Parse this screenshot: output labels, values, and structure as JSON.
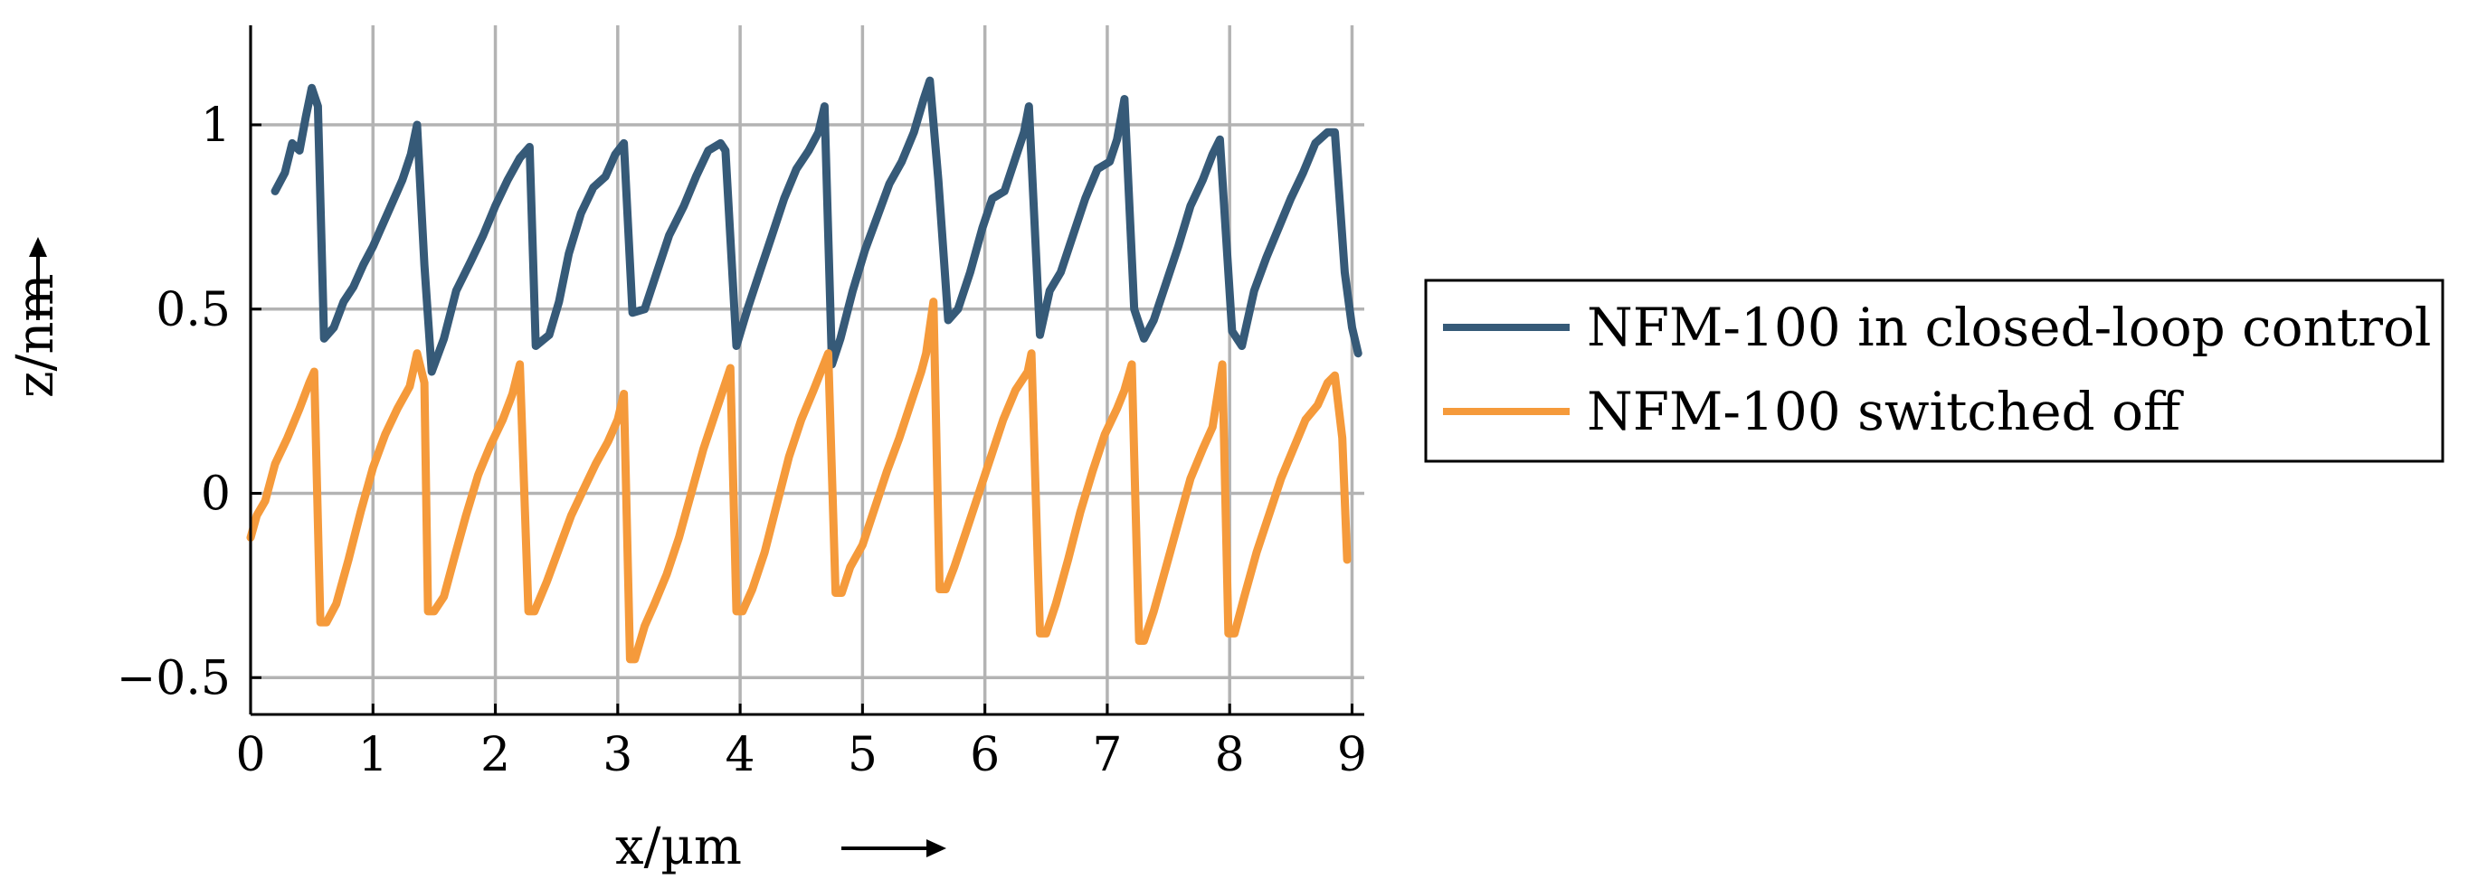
{
  "chart_data": {
    "type": "line",
    "xlabel": "x/µm",
    "ylabel": "z/nm",
    "xlim": [
      0,
      9.1
    ],
    "ylim": [
      -0.6,
      1.27
    ],
    "grid": true,
    "legend_position": "right, outside the plot",
    "xticks": [
      0,
      1,
      2,
      3,
      4,
      5,
      6,
      7,
      8,
      9
    ],
    "yticks": [
      -0.5,
      0,
      0.5,
      1
    ],
    "xtick_labels": [
      "0",
      "1",
      "2",
      "3",
      "4",
      "5",
      "6",
      "7",
      "8",
      "9"
    ],
    "ytick_labels": [
      "−0.5",
      "0",
      "0.5",
      "1"
    ],
    "series": [
      {
        "name": "NFM-100 in closed-loop control",
        "color": "#365a78",
        "points": [
          [
            0.2,
            0.82
          ],
          [
            0.28,
            0.87
          ],
          [
            0.34,
            0.95
          ],
          [
            0.4,
            0.93
          ],
          [
            0.45,
            1.02
          ],
          [
            0.5,
            1.1
          ],
          [
            0.55,
            1.05
          ],
          [
            0.6,
            0.42
          ],
          [
            0.68,
            0.45
          ],
          [
            0.76,
            0.52
          ],
          [
            0.84,
            0.56
          ],
          [
            0.92,
            0.62
          ],
          [
            1.0,
            0.67
          ],
          [
            1.08,
            0.73
          ],
          [
            1.16,
            0.79
          ],
          [
            1.24,
            0.85
          ],
          [
            1.31,
            0.92
          ],
          [
            1.36,
            1.0
          ],
          [
            1.42,
            0.62
          ],
          [
            1.48,
            0.33
          ],
          [
            1.58,
            0.42
          ],
          [
            1.68,
            0.55
          ],
          [
            1.8,
            0.63
          ],
          [
            1.9,
            0.7
          ],
          [
            2.0,
            0.78
          ],
          [
            2.1,
            0.85
          ],
          [
            2.2,
            0.91
          ],
          [
            2.28,
            0.94
          ],
          [
            2.33,
            0.4
          ],
          [
            2.44,
            0.43
          ],
          [
            2.52,
            0.52
          ],
          [
            2.6,
            0.65
          ],
          [
            2.7,
            0.76
          ],
          [
            2.8,
            0.83
          ],
          [
            2.9,
            0.86
          ],
          [
            2.98,
            0.92
          ],
          [
            3.05,
            0.95
          ],
          [
            3.12,
            0.49
          ],
          [
            3.22,
            0.5
          ],
          [
            3.32,
            0.6
          ],
          [
            3.42,
            0.7
          ],
          [
            3.54,
            0.78
          ],
          [
            3.64,
            0.86
          ],
          [
            3.74,
            0.93
          ],
          [
            3.84,
            0.95
          ],
          [
            3.88,
            0.93
          ],
          [
            3.97,
            0.4
          ],
          [
            4.06,
            0.5
          ],
          [
            4.16,
            0.6
          ],
          [
            4.26,
            0.7
          ],
          [
            4.36,
            0.8
          ],
          [
            4.46,
            0.88
          ],
          [
            4.56,
            0.93
          ],
          [
            4.64,
            0.98
          ],
          [
            4.69,
            1.05
          ],
          [
            4.75,
            0.35
          ],
          [
            4.82,
            0.42
          ],
          [
            4.92,
            0.55
          ],
          [
            5.02,
            0.66
          ],
          [
            5.12,
            0.75
          ],
          [
            5.22,
            0.84
          ],
          [
            5.32,
            0.9
          ],
          [
            5.42,
            0.98
          ],
          [
            5.5,
            1.07
          ],
          [
            5.55,
            1.12
          ],
          [
            5.62,
            0.85
          ],
          [
            5.7,
            0.47
          ],
          [
            5.78,
            0.5
          ],
          [
            5.88,
            0.6
          ],
          [
            5.98,
            0.72
          ],
          [
            6.06,
            0.8
          ],
          [
            6.16,
            0.82
          ],
          [
            6.24,
            0.9
          ],
          [
            6.32,
            0.98
          ],
          [
            6.36,
            1.05
          ],
          [
            6.45,
            0.43
          ],
          [
            6.53,
            0.55
          ],
          [
            6.62,
            0.6
          ],
          [
            6.72,
            0.7
          ],
          [
            6.82,
            0.8
          ],
          [
            6.92,
            0.88
          ],
          [
            7.02,
            0.9
          ],
          [
            7.08,
            0.96
          ],
          [
            7.14,
            1.07
          ],
          [
            7.22,
            0.5
          ],
          [
            7.3,
            0.42
          ],
          [
            7.38,
            0.47
          ],
          [
            7.48,
            0.57
          ],
          [
            7.58,
            0.67
          ],
          [
            7.68,
            0.78
          ],
          [
            7.78,
            0.85
          ],
          [
            7.86,
            0.92
          ],
          [
            7.92,
            0.96
          ],
          [
            8.02,
            0.44
          ],
          [
            8.1,
            0.4
          ],
          [
            8.2,
            0.55
          ],
          [
            8.3,
            0.64
          ],
          [
            8.4,
            0.72
          ],
          [
            8.5,
            0.8
          ],
          [
            8.6,
            0.87
          ],
          [
            8.7,
            0.95
          ],
          [
            8.8,
            0.98
          ],
          [
            8.86,
            0.98
          ],
          [
            8.94,
            0.6
          ],
          [
            9.0,
            0.45
          ],
          [
            9.05,
            0.38
          ]
        ]
      },
      {
        "name": "NFM-100 switched off",
        "color": "#f59a3b",
        "points": [
          [
            0.0,
            -0.12
          ],
          [
            0.05,
            -0.06
          ],
          [
            0.12,
            -0.02
          ],
          [
            0.2,
            0.08
          ],
          [
            0.3,
            0.15
          ],
          [
            0.4,
            0.23
          ],
          [
            0.48,
            0.3
          ],
          [
            0.52,
            0.33
          ],
          [
            0.57,
            -0.35
          ],
          [
            0.62,
            -0.35
          ],
          [
            0.7,
            -0.3
          ],
          [
            0.8,
            -0.18
          ],
          [
            0.9,
            -0.05
          ],
          [
            1.0,
            0.07
          ],
          [
            1.1,
            0.16
          ],
          [
            1.2,
            0.23
          ],
          [
            1.3,
            0.29
          ],
          [
            1.36,
            0.38
          ],
          [
            1.42,
            0.3
          ],
          [
            1.45,
            -0.32
          ],
          [
            1.5,
            -0.32
          ],
          [
            1.58,
            -0.28
          ],
          [
            1.66,
            -0.18
          ],
          [
            1.76,
            -0.06
          ],
          [
            1.86,
            0.05
          ],
          [
            1.96,
            0.13
          ],
          [
            2.06,
            0.2
          ],
          [
            2.14,
            0.27
          ],
          [
            2.2,
            0.35
          ],
          [
            2.27,
            -0.32
          ],
          [
            2.32,
            -0.32
          ],
          [
            2.42,
            -0.24
          ],
          [
            2.52,
            -0.15
          ],
          [
            2.62,
            -0.06
          ],
          [
            2.72,
            0.01
          ],
          [
            2.82,
            0.08
          ],
          [
            2.92,
            0.14
          ],
          [
            3.0,
            0.2
          ],
          [
            3.05,
            0.27
          ],
          [
            3.1,
            -0.45
          ],
          [
            3.14,
            -0.45
          ],
          [
            3.22,
            -0.36
          ],
          [
            3.3,
            -0.3
          ],
          [
            3.4,
            -0.22
          ],
          [
            3.5,
            -0.12
          ],
          [
            3.6,
            0.0
          ],
          [
            3.7,
            0.12
          ],
          [
            3.8,
            0.22
          ],
          [
            3.88,
            0.3
          ],
          [
            3.92,
            0.34
          ],
          [
            3.97,
            -0.32
          ],
          [
            4.02,
            -0.32
          ],
          [
            4.1,
            -0.26
          ],
          [
            4.2,
            -0.16
          ],
          [
            4.3,
            -0.03
          ],
          [
            4.4,
            0.1
          ],
          [
            4.5,
            0.2
          ],
          [
            4.6,
            0.28
          ],
          [
            4.66,
            0.33
          ],
          [
            4.72,
            0.38
          ],
          [
            4.78,
            -0.27
          ],
          [
            4.83,
            -0.27
          ],
          [
            4.9,
            -0.2
          ],
          [
            5.0,
            -0.14
          ],
          [
            5.1,
            -0.04
          ],
          [
            5.2,
            0.06
          ],
          [
            5.3,
            0.15
          ],
          [
            5.4,
            0.25
          ],
          [
            5.48,
            0.33
          ],
          [
            5.52,
            0.38
          ],
          [
            5.58,
            0.52
          ],
          [
            5.63,
            -0.26
          ],
          [
            5.68,
            -0.26
          ],
          [
            5.75,
            -0.2
          ],
          [
            5.85,
            -0.1
          ],
          [
            5.95,
            0.0
          ],
          [
            6.05,
            0.1
          ],
          [
            6.15,
            0.2
          ],
          [
            6.25,
            0.28
          ],
          [
            6.35,
            0.33
          ],
          [
            6.38,
            0.38
          ],
          [
            6.45,
            -0.38
          ],
          [
            6.5,
            -0.38
          ],
          [
            6.58,
            -0.3
          ],
          [
            6.68,
            -0.18
          ],
          [
            6.78,
            -0.05
          ],
          [
            6.88,
            0.06
          ],
          [
            6.98,
            0.16
          ],
          [
            7.08,
            0.23
          ],
          [
            7.14,
            0.28
          ],
          [
            7.2,
            0.35
          ],
          [
            7.26,
            -0.4
          ],
          [
            7.3,
            -0.4
          ],
          [
            7.38,
            -0.32
          ],
          [
            7.48,
            -0.2
          ],
          [
            7.58,
            -0.08
          ],
          [
            7.68,
            0.04
          ],
          [
            7.78,
            0.12
          ],
          [
            7.86,
            0.18
          ],
          [
            7.94,
            0.35
          ],
          [
            7.99,
            -0.38
          ],
          [
            8.04,
            -0.38
          ],
          [
            8.12,
            -0.28
          ],
          [
            8.22,
            -0.16
          ],
          [
            8.32,
            -0.06
          ],
          [
            8.42,
            0.04
          ],
          [
            8.52,
            0.12
          ],
          [
            8.62,
            0.2
          ],
          [
            8.72,
            0.24
          ],
          [
            8.8,
            0.3
          ],
          [
            8.86,
            0.32
          ],
          [
            8.92,
            0.15
          ],
          [
            8.96,
            -0.18
          ]
        ]
      }
    ]
  }
}
